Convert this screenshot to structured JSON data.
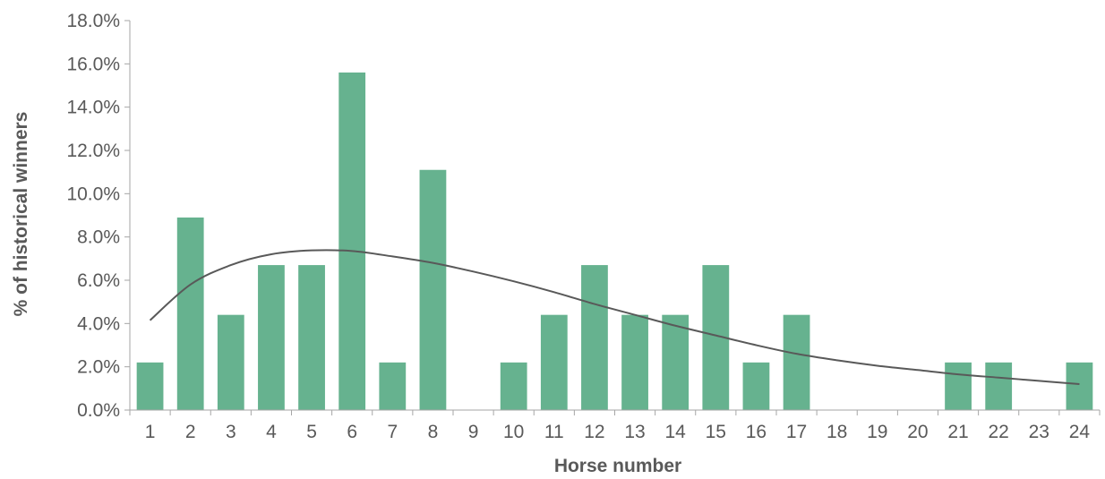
{
  "chart_data": {
    "type": "bar",
    "title": "",
    "xlabel": "Horse number",
    "ylabel": "% of historical winners",
    "categories": [
      "1",
      "2",
      "3",
      "4",
      "5",
      "6",
      "7",
      "8",
      "9",
      "10",
      "11",
      "12",
      "13",
      "14",
      "15",
      "16",
      "17",
      "18",
      "19",
      "20",
      "21",
      "22",
      "23",
      "24"
    ],
    "values": [
      2.2,
      8.9,
      4.4,
      6.7,
      6.7,
      15.6,
      2.2,
      11.1,
      0,
      2.2,
      4.4,
      6.7,
      4.4,
      4.4,
      6.7,
      2.2,
      4.4,
      0,
      0,
      0,
      2.2,
      2.2,
      0,
      2.2
    ],
    "trendline": {
      "type": "smooth",
      "values": [
        4.15,
        5.8,
        6.7,
        7.2,
        7.38,
        7.35,
        7.1,
        6.8,
        6.4,
        5.95,
        5.45,
        4.9,
        4.4,
        3.9,
        3.45,
        3.0,
        2.6,
        2.3,
        2.05,
        1.85,
        1.65,
        1.5,
        1.35,
        1.2
      ]
    },
    "ylim": [
      0,
      18
    ],
    "yticks": [
      0,
      2,
      4,
      6,
      8,
      10,
      12,
      14,
      16,
      18
    ],
    "ytick_labels": [
      "0.0%",
      "2.0%",
      "4.0%",
      "6.0%",
      "8.0%",
      "10.0%",
      "12.0%",
      "14.0%",
      "16.0%",
      "18.0%"
    ],
    "grid": false,
    "legend": "none",
    "colors": {
      "bar": "#66b28f",
      "trend": "#595959",
      "axis": "#a6a6a6",
      "text": "#595959"
    }
  }
}
